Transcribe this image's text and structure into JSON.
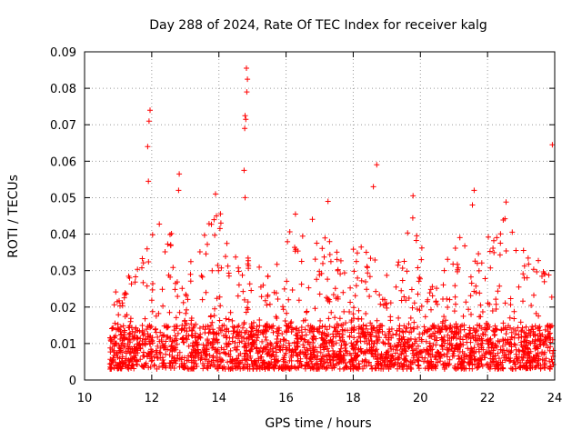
{
  "chart_data": {
    "type": "scatter",
    "title": "Day 288 of 2024, Rate Of TEC Index for receiver kalg",
    "xlabel": "GPS time / hours",
    "ylabel": "ROTI / TECUs",
    "xlim": [
      10,
      24
    ],
    "ylim": [
      0,
      0.09
    ],
    "xticks": [
      10,
      12,
      14,
      16,
      18,
      20,
      22,
      24
    ],
    "xtick_labels": [
      "10",
      "12",
      "14",
      "16",
      "18",
      "20",
      "22",
      "24"
    ],
    "yticks": [
      0,
      0.01,
      0.02,
      0.03,
      0.04,
      0.05,
      0.06,
      0.07,
      0.08,
      0.09
    ],
    "ytick_labels": [
      "0",
      "0.01",
      "0.02",
      "0.03",
      "0.04",
      "0.05",
      "0.06",
      "0.07",
      "0.08",
      "0.09"
    ],
    "grid": true,
    "marker": "+",
    "series_color": "#ff0000",
    "data_start": 10.75,
    "data_end": 24.0,
    "peaks": [
      {
        "x": 11.95,
        "y": 0.074
      },
      {
        "x": 11.92,
        "y": 0.071
      },
      {
        "x": 11.88,
        "y": 0.064
      },
      {
        "x": 11.9,
        "y": 0.0545
      },
      {
        "x": 12.82,
        "y": 0.0565
      },
      {
        "x": 12.8,
        "y": 0.052
      },
      {
        "x": 14.82,
        "y": 0.0855
      },
      {
        "x": 14.85,
        "y": 0.0825
      },
      {
        "x": 14.83,
        "y": 0.079
      },
      {
        "x": 14.78,
        "y": 0.0725
      },
      {
        "x": 14.8,
        "y": 0.0715
      },
      {
        "x": 14.77,
        "y": 0.069
      },
      {
        "x": 14.75,
        "y": 0.0575
      },
      {
        "x": 14.78,
        "y": 0.05
      },
      {
        "x": 13.9,
        "y": 0.051
      },
      {
        "x": 18.7,
        "y": 0.059
      },
      {
        "x": 18.6,
        "y": 0.053
      },
      {
        "x": 19.78,
        "y": 0.0505
      },
      {
        "x": 21.6,
        "y": 0.052
      },
      {
        "x": 21.55,
        "y": 0.048
      },
      {
        "x": 22.55,
        "y": 0.0488
      },
      {
        "x": 23.93,
        "y": 0.0645
      },
      {
        "x": 17.25,
        "y": 0.049
      },
      {
        "x": 16.28,
        "y": 0.0455
      }
    ],
    "envelope": [
      {
        "x": 10.75,
        "y": 0.025
      },
      {
        "x": 11.5,
        "y": 0.03
      },
      {
        "x": 12.0,
        "y": 0.04
      },
      {
        "x": 12.4,
        "y": 0.047
      },
      {
        "x": 13.0,
        "y": 0.03
      },
      {
        "x": 13.9,
        "y": 0.05
      },
      {
        "x": 14.5,
        "y": 0.036
      },
      {
        "x": 15.5,
        "y": 0.03
      },
      {
        "x": 16.3,
        "y": 0.044
      },
      {
        "x": 17.2,
        "y": 0.047
      },
      {
        "x": 17.8,
        "y": 0.035
      },
      {
        "x": 18.5,
        "y": 0.042
      },
      {
        "x": 19.2,
        "y": 0.03
      },
      {
        "x": 19.8,
        "y": 0.048
      },
      {
        "x": 20.3,
        "y": 0.025
      },
      {
        "x": 21.0,
        "y": 0.043
      },
      {
        "x": 21.6,
        "y": 0.035
      },
      {
        "x": 22.5,
        "y": 0.046
      },
      {
        "x": 23.2,
        "y": 0.035
      },
      {
        "x": 24.0,
        "y": 0.033
      }
    ],
    "baseline_range": [
      0.003,
      0.015
    ],
    "point_count": 2600
  }
}
